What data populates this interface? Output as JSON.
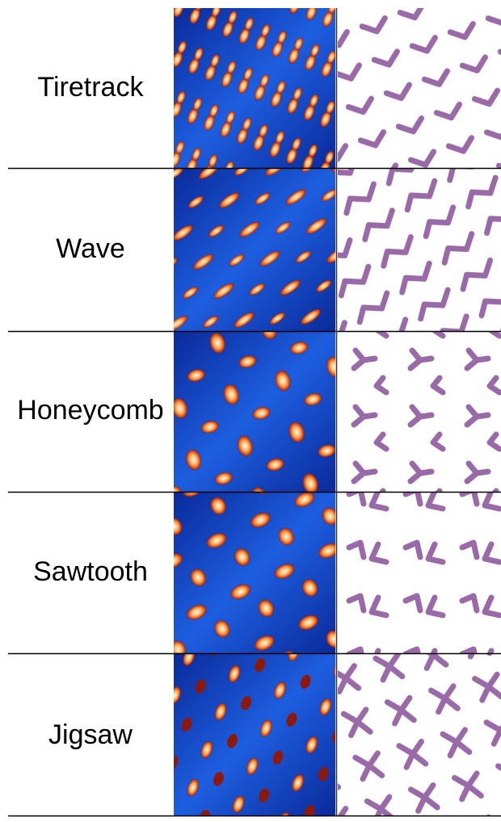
{
  "rows": [
    {
      "label": "Tiretrack"
    },
    {
      "label": "Wave"
    },
    {
      "label": "Honeycomb"
    },
    {
      "label": "Sawtooth"
    },
    {
      "label": "Jigsaw"
    }
  ]
}
